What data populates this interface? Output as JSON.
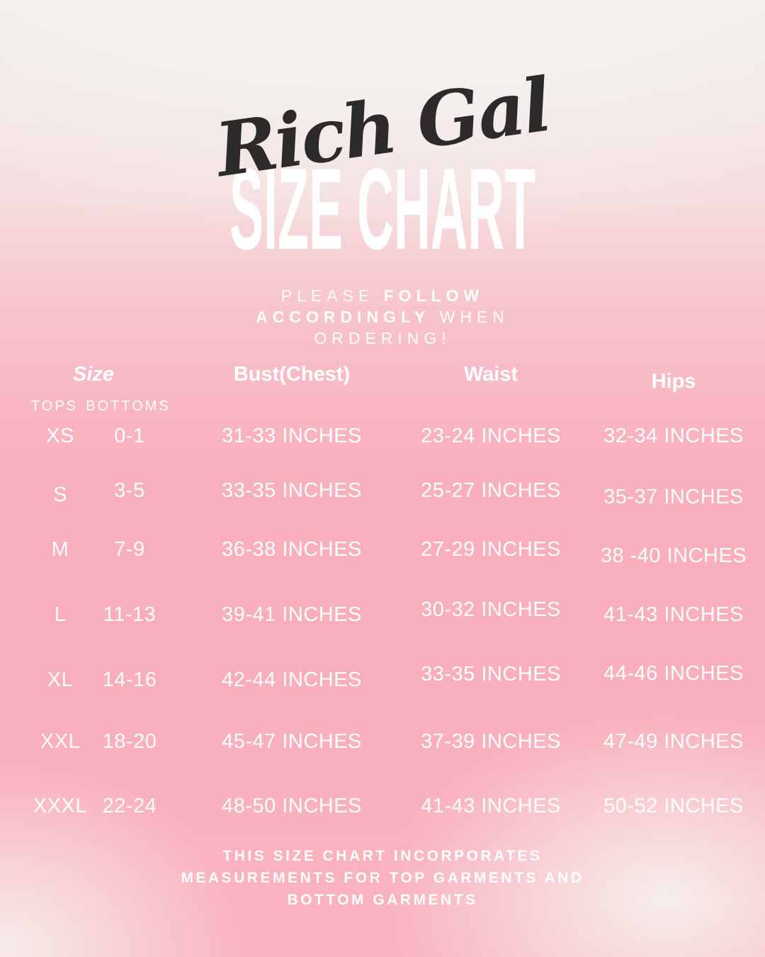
{
  "colors": {
    "pink": "#f9aebb",
    "cream": "#f4f0ed",
    "text_white": "#ffffff",
    "logo_ink": "#2d2a2b"
  },
  "brand": {
    "script_logo": "Rich Gal",
    "title": "SIZE CHART"
  },
  "subtitle": {
    "line1": {
      "normal": "PLEASE",
      "bold": "FOLLOW"
    },
    "line2": {
      "bold": "ACCORDINGLY",
      "normal": "WHEN"
    },
    "line3": {
      "normal": "ORDERING!"
    }
  },
  "chart_data": {
    "type": "table",
    "title": "Rich Gal Size Chart",
    "headers": {
      "size": "Size",
      "tops": "TOPS",
      "bottoms": "BOTTOMS",
      "bust": "Bust(Chest)",
      "waist": "Waist",
      "hips": "Hips"
    },
    "rows": [
      [
        "XS",
        "0-1",
        "31-33 INCHES",
        "23-24 INCHES",
        "32-34 INCHES"
      ],
      [
        "S",
        "3-5",
        "33-35 INCHES",
        "25-27 INCHES",
        "35-37 INCHES"
      ],
      [
        "M",
        "7-9",
        "36-38 INCHES",
        "27-29 INCHES",
        "38 -40 INCHES"
      ],
      [
        "L",
        "11-13",
        "39-41 INCHES",
        "30-32 INCHES",
        "41-43 INCHES"
      ],
      [
        "XL",
        "14-16",
        "42-44 INCHES",
        "33-35 INCHES",
        "44-46 INCHES"
      ],
      [
        "XXL",
        "18-20",
        "45-47 INCHES",
        "37-39 INCHES",
        "47-49 INCHES"
      ],
      [
        "XXXL",
        "22-24",
        "48-50 INCHES",
        "41-43 INCHES",
        "50-52 INCHES"
      ]
    ]
  },
  "footer": {
    "lines": [
      "THIS SIZE CHART INCORPORATES",
      "MEASUREMENTS FOR TOP GARMENTS AND",
      "BOTTOM GARMENTS"
    ]
  }
}
